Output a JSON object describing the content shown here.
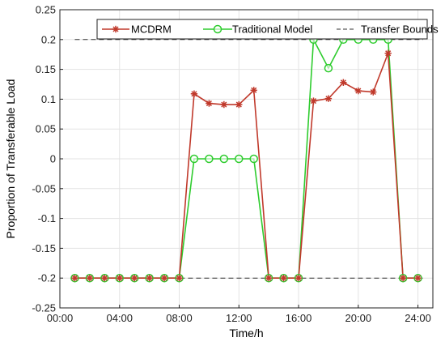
{
  "chart_data": {
    "type": "line",
    "xlabel": "Time/h",
    "ylabel": "Proportion of Transferable Load",
    "xlim": [
      0,
      25
    ],
    "ylim": [
      -0.25,
      0.25
    ],
    "x_ticks": [
      0,
      4,
      8,
      12,
      16,
      20,
      24
    ],
    "x_tick_labels": [
      "00:00",
      "04:00",
      "08:00",
      "12:00",
      "16:00",
      "20:00",
      "24:00"
    ],
    "y_ticks": [
      -0.25,
      -0.2,
      -0.15,
      -0.1,
      -0.05,
      0,
      0.05,
      0.1,
      0.15,
      0.2,
      0.25
    ],
    "y_tick_labels": [
      "-0.25",
      "-0.2",
      "-0.15",
      "-0.1",
      "-0.05",
      "0",
      "0.05",
      "0.1",
      "0.15",
      "0.2",
      "0.25"
    ],
    "grid": true,
    "legend_position": "top",
    "x": [
      1,
      2,
      3,
      4,
      5,
      6,
      7,
      8,
      9,
      10,
      11,
      12,
      13,
      14,
      15,
      16,
      17,
      18,
      19,
      20,
      21,
      22,
      23,
      24
    ],
    "series": [
      {
        "name": "MCDRM",
        "color": "#c0392b",
        "marker": "asterisk",
        "values": [
          -0.2,
          -0.2,
          -0.2,
          -0.2,
          -0.2,
          -0.2,
          -0.2,
          -0.2,
          0.109,
          0.093,
          0.091,
          0.091,
          0.115,
          -0.2,
          -0.2,
          -0.2,
          0.097,
          0.101,
          0.128,
          0.114,
          0.112,
          0.177,
          -0.2,
          -0.2
        ]
      },
      {
        "name": "Traditional Model",
        "color": "#2ecc2e",
        "marker": "circle",
        "values": [
          -0.2,
          -0.2,
          -0.2,
          -0.2,
          -0.2,
          -0.2,
          -0.2,
          -0.2,
          0,
          0,
          0,
          0,
          0,
          -0.2,
          -0.2,
          -0.2,
          0.2,
          0.152,
          0.2,
          0.2,
          0.2,
          0.2,
          -0.2,
          -0.2
        ]
      },
      {
        "name": "Transfer Bounds",
        "color": "#333333",
        "style": "dashed",
        "bounds": [
          -0.2,
          0.2
        ]
      }
    ]
  }
}
